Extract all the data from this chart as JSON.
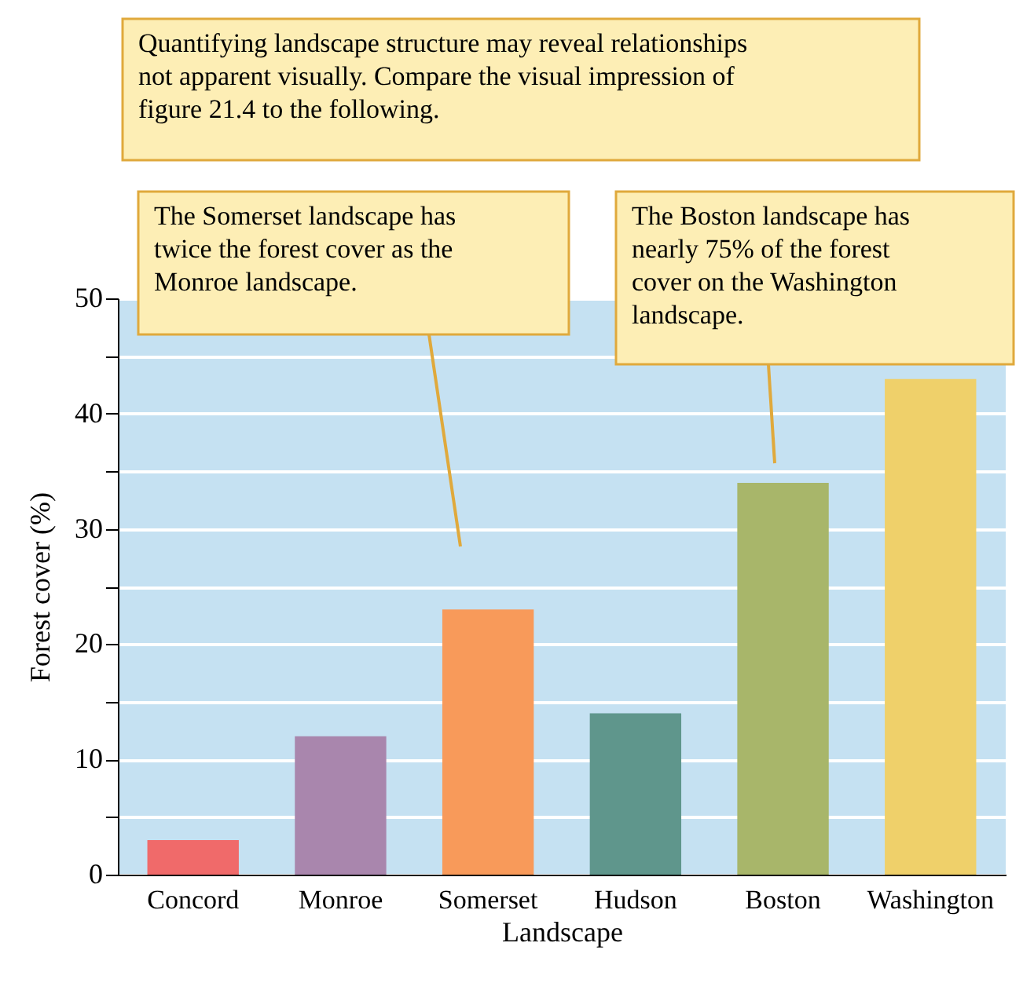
{
  "chart_data": {
    "type": "bar",
    "xlabel": "Landscape",
    "ylabel": "Forest cover (%)",
    "categories": [
      "Concord",
      "Monroe",
      "Somerset",
      "Hudson",
      "Boston",
      "Washington"
    ],
    "values": [
      3,
      12,
      23,
      14,
      34,
      43
    ],
    "colors": [
      "#f06a6a",
      "#a986ad",
      "#f89a5a",
      "#5f968c",
      "#a8b66a",
      "#efd06a"
    ],
    "ylim": [
      0,
      50
    ],
    "yticks": [
      0,
      {
        "value": 5,
        "label": null
      },
      10,
      {
        "value": 15,
        "label": null
      },
      20,
      {
        "value": 25,
        "label": null
      },
      30,
      {
        "value": 35,
        "label": null
      },
      40,
      {
        "value": 45,
        "label": null
      },
      50
    ],
    "grid": "y",
    "annotations": [
      "Quantifying landscape structure may reveal relationships not apparent visually. Compare the visual impression of figure 21.4 to the following.",
      "The Somerset landscape has twice the forest cover as the Monroe landscape.",
      "The Boston landscape has nearly 75% of the forest cover on the Washington landscape."
    ]
  }
}
